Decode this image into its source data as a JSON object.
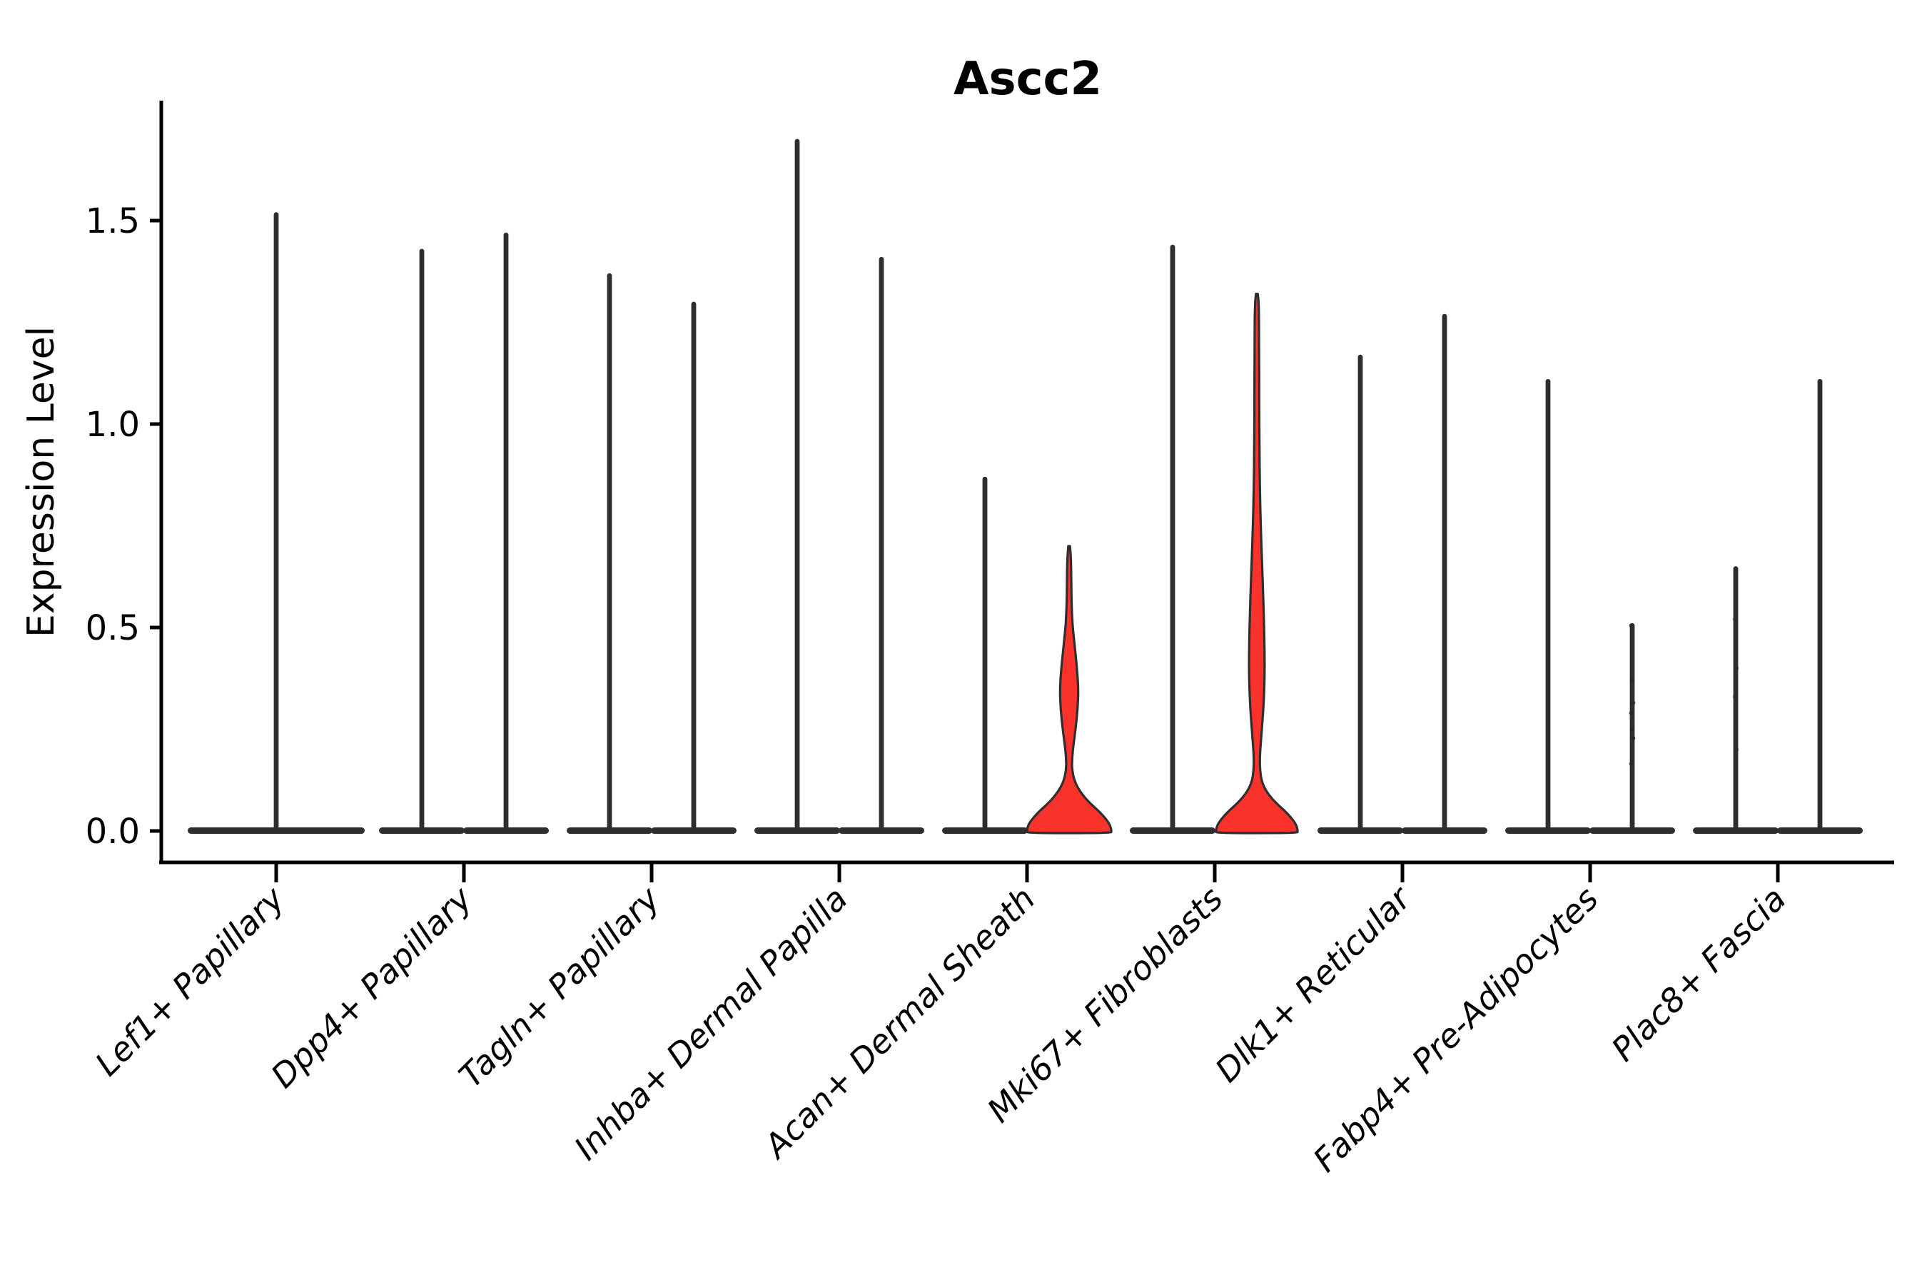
{
  "title": {
    "text": "Ascc2"
  },
  "y_axis": {
    "label": "Expression Level",
    "tick_labels": [
      "0.0",
      "0.5",
      "1.0",
      "1.5"
    ],
    "tick_values": [
      0.0,
      0.5,
      1.0,
      1.5
    ]
  },
  "colors": {
    "outline": "#2e2e2e",
    "highlight_fill": "#f9322b",
    "plain_fill": "#ffffff",
    "axis": "#000000",
    "dot": "#262626",
    "background": "#ffffff"
  },
  "chart_data": {
    "type": "violin",
    "title": "Ascc2",
    "xlabel": "",
    "ylabel": "Expression Level",
    "ylim": [
      0,
      1.79
    ],
    "yticks": [
      0.0,
      0.5,
      1.0,
      1.5
    ],
    "grid": false,
    "legend": "none",
    "categories": [
      "Lef1+ Papillary",
      "Dpp4+ Papillary",
      "Tagln+ Papillary",
      "Inhba+ Dermal Papilla",
      "Acan+ Dermal Sheath",
      "Mki67+ Fibroblasts",
      "Dlk1+ Reticular",
      "Fabp4+ Pre-Adipocytes",
      "Plac8+ Fascia"
    ],
    "description": "Violin plot of Ascc2 expression; most violins collapse to a flat base at 0 with a thin density spike to the max expressed value. Two violins are highlighted red with visible density bulges.",
    "violins": [
      {
        "category_index": 0,
        "group": "single",
        "max_expression": 1.52,
        "highlighted": false,
        "base_halfwidth": 124
      },
      {
        "category_index": 1,
        "group": "left",
        "max_expression": 1.43,
        "highlighted": false,
        "base_halfwidth": 60
      },
      {
        "category_index": 1,
        "group": "right",
        "max_expression": 1.47,
        "highlighted": false,
        "base_halfwidth": 60
      },
      {
        "category_index": 2,
        "group": "left",
        "max_expression": 1.37,
        "highlighted": false,
        "base_halfwidth": 60
      },
      {
        "category_index": 2,
        "group": "right",
        "max_expression": 1.3,
        "highlighted": false,
        "base_halfwidth": 60
      },
      {
        "category_index": 3,
        "group": "left",
        "max_expression": 1.7,
        "highlighted": false,
        "base_halfwidth": 60
      },
      {
        "category_index": 3,
        "group": "right",
        "max_expression": 1.41,
        "highlighted": false,
        "base_halfwidth": 60
      },
      {
        "category_index": 4,
        "group": "left",
        "max_expression": 0.87,
        "highlighted": false,
        "base_halfwidth": 60
      },
      {
        "category_index": 4,
        "group": "right",
        "max_expression": 0.7,
        "highlighted": true,
        "base_halfwidth": 59,
        "profile": [
          [
            0.7,
            1.2
          ],
          [
            0.67,
            2.6
          ],
          [
            0.62,
            3.0
          ],
          [
            0.56,
            3.4
          ],
          [
            0.51,
            4.5
          ],
          [
            0.46,
            7.5
          ],
          [
            0.4,
            11.0
          ],
          [
            0.35,
            13.0
          ],
          [
            0.3,
            12.0
          ],
          [
            0.25,
            9.0
          ],
          [
            0.21,
            6.0
          ],
          [
            0.18,
            4.2
          ],
          [
            0.15,
            4.0
          ],
          [
            0.12,
            8.0
          ],
          [
            0.095,
            16.0
          ],
          [
            0.07,
            28.0
          ],
          [
            0.045,
            44.0
          ],
          [
            0.02,
            56.0
          ],
          [
            0.005,
            59.0
          ],
          [
            0.0,
            59.0
          ]
        ]
      },
      {
        "category_index": 5,
        "group": "left",
        "max_expression": 1.44,
        "highlighted": false,
        "base_halfwidth": 60
      },
      {
        "category_index": 5,
        "group": "right",
        "max_expression": 1.32,
        "highlighted": true,
        "base_halfwidth": 57,
        "profile": [
          [
            1.32,
            1.2
          ],
          [
            1.3,
            2.8
          ],
          [
            1.2,
            3.2
          ],
          [
            1.05,
            3.4
          ],
          [
            0.95,
            3.6
          ],
          [
            0.85,
            4.2
          ],
          [
            0.75,
            5.5
          ],
          [
            0.65,
            7.5
          ],
          [
            0.55,
            9.5
          ],
          [
            0.45,
            10.8
          ],
          [
            0.38,
            11.0
          ],
          [
            0.31,
            9.5
          ],
          [
            0.26,
            7.5
          ],
          [
            0.215,
            5.5
          ],
          [
            0.18,
            4.2
          ],
          [
            0.15,
            4.4
          ],
          [
            0.12,
            7.0
          ],
          [
            0.095,
            14.0
          ],
          [
            0.07,
            26.0
          ],
          [
            0.045,
            42.0
          ],
          [
            0.02,
            54.0
          ],
          [
            0.005,
            57.0
          ],
          [
            0.0,
            57.0
          ]
        ]
      },
      {
        "category_index": 6,
        "group": "left",
        "max_expression": 1.17,
        "highlighted": false,
        "base_halfwidth": 60
      },
      {
        "category_index": 6,
        "group": "right",
        "max_expression": 1.27,
        "highlighted": false,
        "base_halfwidth": 60
      },
      {
        "category_index": 7,
        "group": "left",
        "max_expression": 1.11,
        "highlighted": false,
        "base_halfwidth": 60
      },
      {
        "category_index": 7,
        "group": "right",
        "max_expression": 0.51,
        "highlighted": false,
        "base_halfwidth": 60,
        "dots": [
          0.505,
          0.37,
          0.315,
          0.29,
          0.25,
          0.228,
          0.165
        ],
        "dots_opacity": 0.85
      },
      {
        "category_index": 8,
        "group": "left",
        "max_expression": 0.65,
        "highlighted": false,
        "base_halfwidth": 60,
        "dots": [
          0.52,
          0.46,
          0.4,
          0.33,
          0.27,
          0.2
        ],
        "dots_opacity": 0.45
      },
      {
        "category_index": 8,
        "group": "right",
        "max_expression": 1.11,
        "highlighted": false,
        "base_halfwidth": 60
      }
    ]
  }
}
